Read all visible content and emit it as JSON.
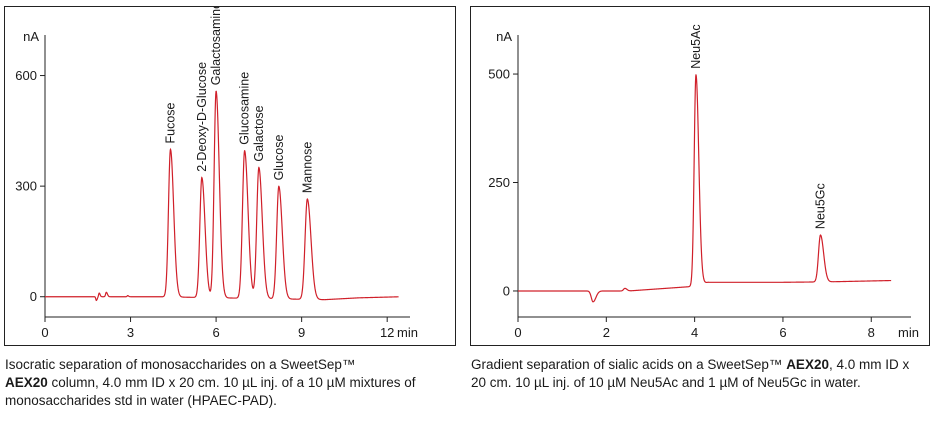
{
  "chart_data": [
    {
      "type": "line",
      "title": "",
      "xlabel": "min",
      "ylabel": "nA",
      "xlim": [
        0,
        12.8
      ],
      "ylim": [
        -55,
        710
      ],
      "x_ticks": [
        0,
        3,
        6,
        9,
        12
      ],
      "x_tick_labels": [
        "0",
        "3",
        "6",
        "9",
        "12"
      ],
      "y_ticks": [
        0,
        300,
        600
      ],
      "y_tick_labels": [
        "0",
        "300",
        "600"
      ],
      "line_color": "#d0202a",
      "baseline": [
        [
          0,
          0
        ],
        [
          1.7,
          0
        ],
        [
          3.0,
          0
        ],
        [
          4.0,
          0
        ],
        [
          9.8,
          -8
        ],
        [
          11.0,
          -3
        ],
        [
          12.5,
          0
        ]
      ],
      "peaks": [
        {
          "name": "Fucose",
          "x": 4.4,
          "y": 400,
          "w": 0.07
        },
        {
          "name": "2-Deoxy-D-Glucose",
          "x": 5.5,
          "y": 325,
          "w": 0.07
        },
        {
          "name": "Galactosamine",
          "x": 6.0,
          "y": 560,
          "w": 0.07
        },
        {
          "name": "Glucosamine",
          "x": 7.0,
          "y": 400,
          "w": 0.075
        },
        {
          "name": "Galactose",
          "x": 7.5,
          "y": 355,
          "w": 0.075
        },
        {
          "name": "Glucose",
          "x": 8.2,
          "y": 305,
          "w": 0.075
        },
        {
          "name": "Mannose",
          "x": 9.2,
          "y": 272,
          "w": 0.08
        }
      ],
      "artifacts": [
        {
          "x": 1.8,
          "y": -10,
          "w": 0.02
        },
        {
          "x": 1.9,
          "y": 10,
          "w": 0.02
        },
        {
          "x": 2.15,
          "y": 12,
          "w": 0.025
        },
        {
          "x": 2.9,
          "y": 3,
          "w": 0.02
        }
      ],
      "labels": [
        "Fucose",
        "2-Deoxy-D-Glucose",
        "Galactosamine",
        "Glucosamine",
        "Galactose",
        "Glucose",
        "Mannose"
      ],
      "grid": false
    },
    {
      "type": "line",
      "title": "",
      "xlabel": "min",
      "ylabel": "nA",
      "xlim": [
        0,
        8.9
      ],
      "ylim": [
        -60,
        590
      ],
      "x_ticks": [
        0,
        2,
        4,
        6,
        8
      ],
      "x_tick_labels": [
        "0",
        "2",
        "4",
        "6",
        "8"
      ],
      "y_ticks": [
        0,
        250,
        500
      ],
      "y_tick_labels": [
        "0",
        "250",
        "500"
      ],
      "line_color": "#d0202a",
      "baseline": [
        [
          0,
          0
        ],
        [
          1.5,
          0
        ],
        [
          2.5,
          0
        ],
        [
          3.9,
          10
        ],
        [
          4.3,
          20
        ],
        [
          6.0,
          20
        ],
        [
          7.0,
          21
        ],
        [
          8.9,
          25
        ]
      ],
      "peaks": [
        {
          "name": "Neu5Ac",
          "x": 4.03,
          "y": 485,
          "w": 0.04
        },
        {
          "name": "Neu5Gc",
          "x": 6.85,
          "y": 108,
          "w": 0.045
        }
      ],
      "artifacts": [
        {
          "x": 1.7,
          "y": -25,
          "w": 0.04
        },
        {
          "x": 2.42,
          "y": 6,
          "w": 0.03
        }
      ],
      "labels": [
        "Neu5Ac",
        "Neu5Gc"
      ],
      "grid": false
    }
  ],
  "captions": {
    "left_pre": "Isocratic separation of monosaccharides on a SweetSep™",
    "left_bold": "AEX20",
    "left_post": " column, 4.0 mm ID x 20 cm. 10 µL inj. of a 10 µM mixtures of monosaccharides std in water (HPAEC-PAD).",
    "right_pre": "Gradient separation of sialic acids on a SweetSep™ ",
    "right_bold": "AEX20",
    "right_post": ", 4.0 mm ID x 20 cm. 10 µL inj. of 10 µM Neu5Ac and 1 µM of Neu5Gc in water."
  }
}
